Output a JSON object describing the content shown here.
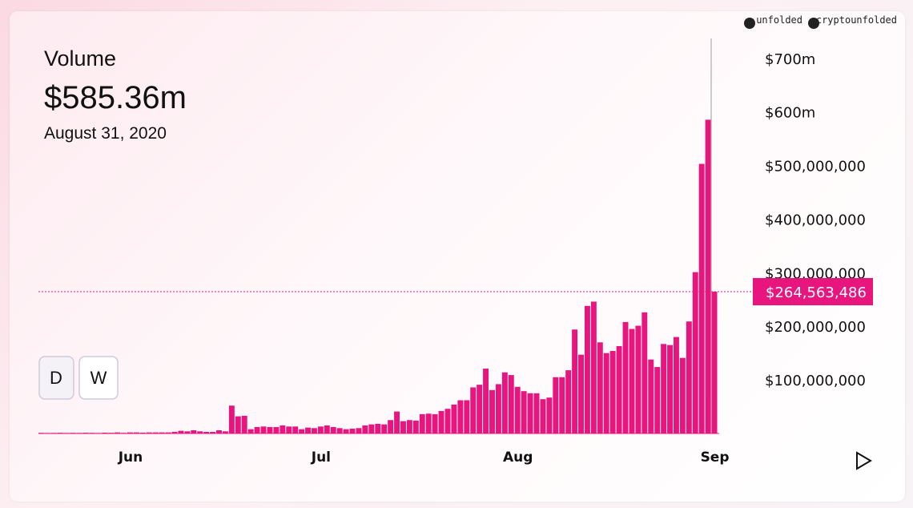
{
  "chart_data": {
    "type": "bar",
    "title": "Volume",
    "headline": "$585.36m",
    "date": "August 31, 2020",
    "buttons": [
      "D",
      "W"
    ],
    "brand": [
      "unfolded",
      "cryptounfolded"
    ],
    "color": "#e8157f",
    "categories": [
      null,
      null,
      null,
      null,
      null,
      null,
      null,
      null,
      null,
      null,
      null,
      null,
      null,
      null,
      "Jun",
      null,
      null,
      null,
      null,
      null,
      null,
      null,
      null,
      null,
      null,
      null,
      null,
      null,
      null,
      null,
      null,
      null,
      null,
      null,
      null,
      null,
      null,
      null,
      null,
      null,
      null,
      null,
      null,
      null,
      "Jul",
      null,
      null,
      null,
      null,
      null,
      null,
      null,
      null,
      null,
      null,
      null,
      null,
      null,
      null,
      null,
      null,
      null,
      null,
      null,
      null,
      null,
      null,
      null,
      null,
      null,
      null,
      null,
      null,
      null,
      null,
      "Aug",
      null,
      null,
      null,
      null,
      null,
      null,
      null,
      null,
      null,
      null,
      null,
      null,
      null,
      null,
      null,
      null,
      null,
      null,
      null,
      null,
      null,
      null,
      null,
      null,
      null,
      null,
      null,
      null,
      null,
      null,
      "Sep"
    ],
    "values": [
      1200000,
      1000000,
      1100000,
      1300000,
      1000000,
      1200000,
      1100000,
      1400000,
      1200000,
      1000000,
      1500000,
      1300000,
      2000000,
      1200000,
      2000000,
      2000000,
      1500000,
      2000000,
      2000000,
      2000000,
      2000000,
      3000000,
      5000000,
      4000000,
      6000000,
      4000000,
      3000000,
      3000000,
      6000000,
      4000000,
      52000000,
      32000000,
      33000000,
      8000000,
      12000000,
      13000000,
      12000000,
      12000000,
      15000000,
      13000000,
      13000000,
      8000000,
      11000000,
      10000000,
      13000000,
      15000000,
      12000000,
      10000000,
      8000000,
      9000000,
      10000000,
      15000000,
      17000000,
      18000000,
      17000000,
      25000000,
      41000000,
      23000000,
      25000000,
      24000000,
      36000000,
      37000000,
      36000000,
      42000000,
      46000000,
      54000000,
      62000000,
      62000000,
      86000000,
      91000000,
      121000000,
      81000000,
      92000000,
      114000000,
      109000000,
      87000000,
      79000000,
      75000000,
      75000000,
      64000000,
      67000000,
      105000000,
      105000000,
      118000000,
      194000000,
      147000000,
      238000000,
      246000000,
      170000000,
      150000000,
      154000000,
      163000000,
      208000000,
      195000000,
      201000000,
      226000000,
      138000000,
      124000000,
      167000000,
      165000000,
      180000000,
      141000000,
      209000000,
      301000000,
      503000000,
      585360000,
      264563486
    ],
    "ylim": [
      0,
      737000000
    ],
    "yticks": [
      {
        "value": 100000000,
        "label": "$100,000,000"
      },
      {
        "value": 200000000,
        "label": "$200,000,000"
      },
      {
        "value": 300000000,
        "label": "$300,000,000"
      },
      {
        "value": 400000000,
        "label": "$400,000,000"
      },
      {
        "value": 500000000,
        "label": "$500,000,000"
      },
      {
        "value": 600000000,
        "label": "$600m"
      },
      {
        "value": 700000000,
        "label": "$700m"
      }
    ],
    "highlight": {
      "value": 264563486,
      "label": "$264,563,486"
    }
  }
}
